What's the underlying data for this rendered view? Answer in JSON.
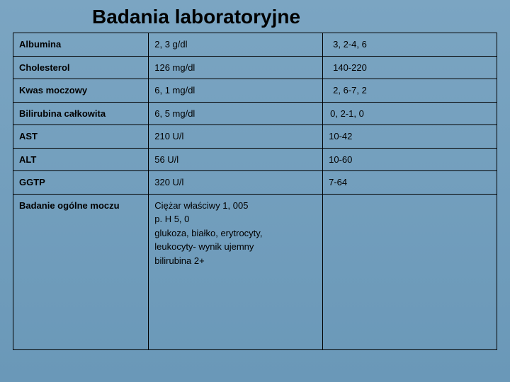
{
  "title": "Badania  laboratoryjne",
  "table": {
    "columns": {
      "name_width": "28%",
      "value_width": "36%",
      "ref_width": "36%"
    },
    "rows": [
      {
        "name": "Albumina",
        "value": "2, 3 g/dl",
        "ref": "3, 2-4, 6",
        "ref_pad": "ref-pad1"
      },
      {
        "name": "Cholesterol",
        "value": "126 mg/dl",
        "ref": "140-220",
        "ref_pad": "ref-pad1"
      },
      {
        "name": "Kwas moczowy",
        "value": "6, 1 mg/dl",
        "ref": "2, 6-7, 2",
        "ref_pad": "ref-pad1"
      },
      {
        "name": "Bilirubina całkowita",
        "value": "6, 5 mg/dl",
        "ref": "0, 2-1, 0",
        "ref_pad": "ref-pad2"
      },
      {
        "name": "AST",
        "value": "210 U/l",
        "ref": "10-42",
        "ref_pad": ""
      },
      {
        "name": "ALT",
        "value": "56 U/l",
        "ref": "10-60",
        "ref_pad": ""
      },
      {
        "name": "GGTP",
        "value": "320 U/l",
        "ref": "7-64",
        "ref_pad": ""
      }
    ],
    "last_row": {
      "name": "Badanie ogólne moczu",
      "lines": [
        "Ciężar właściwy 1, 005",
        "p. H 5, 0",
        "glukoza, białko, erytrocyty,",
        "leukocyty- wynik ujemny",
        "bilirubina 2+"
      ],
      "ref": ""
    }
  },
  "styling": {
    "background_gradient_top": "#7ba5c2",
    "background_gradient_bottom": "#6a98b8",
    "title_color": "#000000",
    "title_fontsize": 28,
    "cell_fontsize": 13,
    "border_color": "#000000",
    "text_color": "#000000"
  }
}
